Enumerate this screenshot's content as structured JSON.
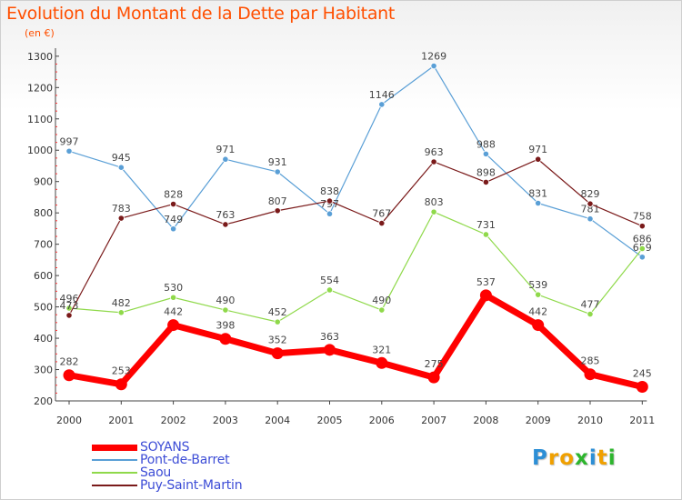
{
  "chart_data": {
    "type": "line",
    "title": "Evolution du Montant de la Dette par Habitant",
    "subtitle": "(en €)",
    "categories": [
      "2000",
      "2001",
      "2002",
      "2003",
      "2004",
      "2005",
      "2006",
      "2007",
      "2008",
      "2009",
      "2010",
      "2011"
    ],
    "ylim": [
      200,
      1300
    ],
    "yticks": [
      200,
      300,
      400,
      500,
      600,
      700,
      800,
      900,
      1000,
      1100,
      1200,
      1300
    ],
    "grid": false,
    "legend_position": "bottom-left",
    "series": [
      {
        "name": "SOYANS",
        "color": "#ff0000",
        "values": [
          282,
          253,
          442,
          398,
          352,
          363,
          321,
          275,
          537,
          442,
          285,
          245
        ]
      },
      {
        "name": "Pont-de-Barret",
        "color": "#5a9fd6",
        "values": [
          997,
          945,
          749,
          971,
          931,
          797,
          1146,
          1269,
          988,
          831,
          781,
          659
        ]
      },
      {
        "name": "Saou",
        "color": "#8fd94a",
        "values": [
          496,
          482,
          530,
          490,
          452,
          554,
          490,
          803,
          731,
          539,
          477,
          686
        ]
      },
      {
        "name": "Puy-Saint-Martin",
        "color": "#7a1a1a",
        "values": [
          473,
          783,
          828,
          763,
          807,
          838,
          767,
          963,
          898,
          971,
          829,
          758
        ]
      }
    ]
  },
  "logo": {
    "text": "Proxiti",
    "letters": [
      "P",
      "r",
      "o",
      "x",
      "i",
      "t",
      "i"
    ],
    "colors": [
      "#2d8fd6",
      "#f0a000",
      "#f0a000",
      "#2db52d",
      "#2d8fd6",
      "#f0a000",
      "#2db52d"
    ]
  }
}
